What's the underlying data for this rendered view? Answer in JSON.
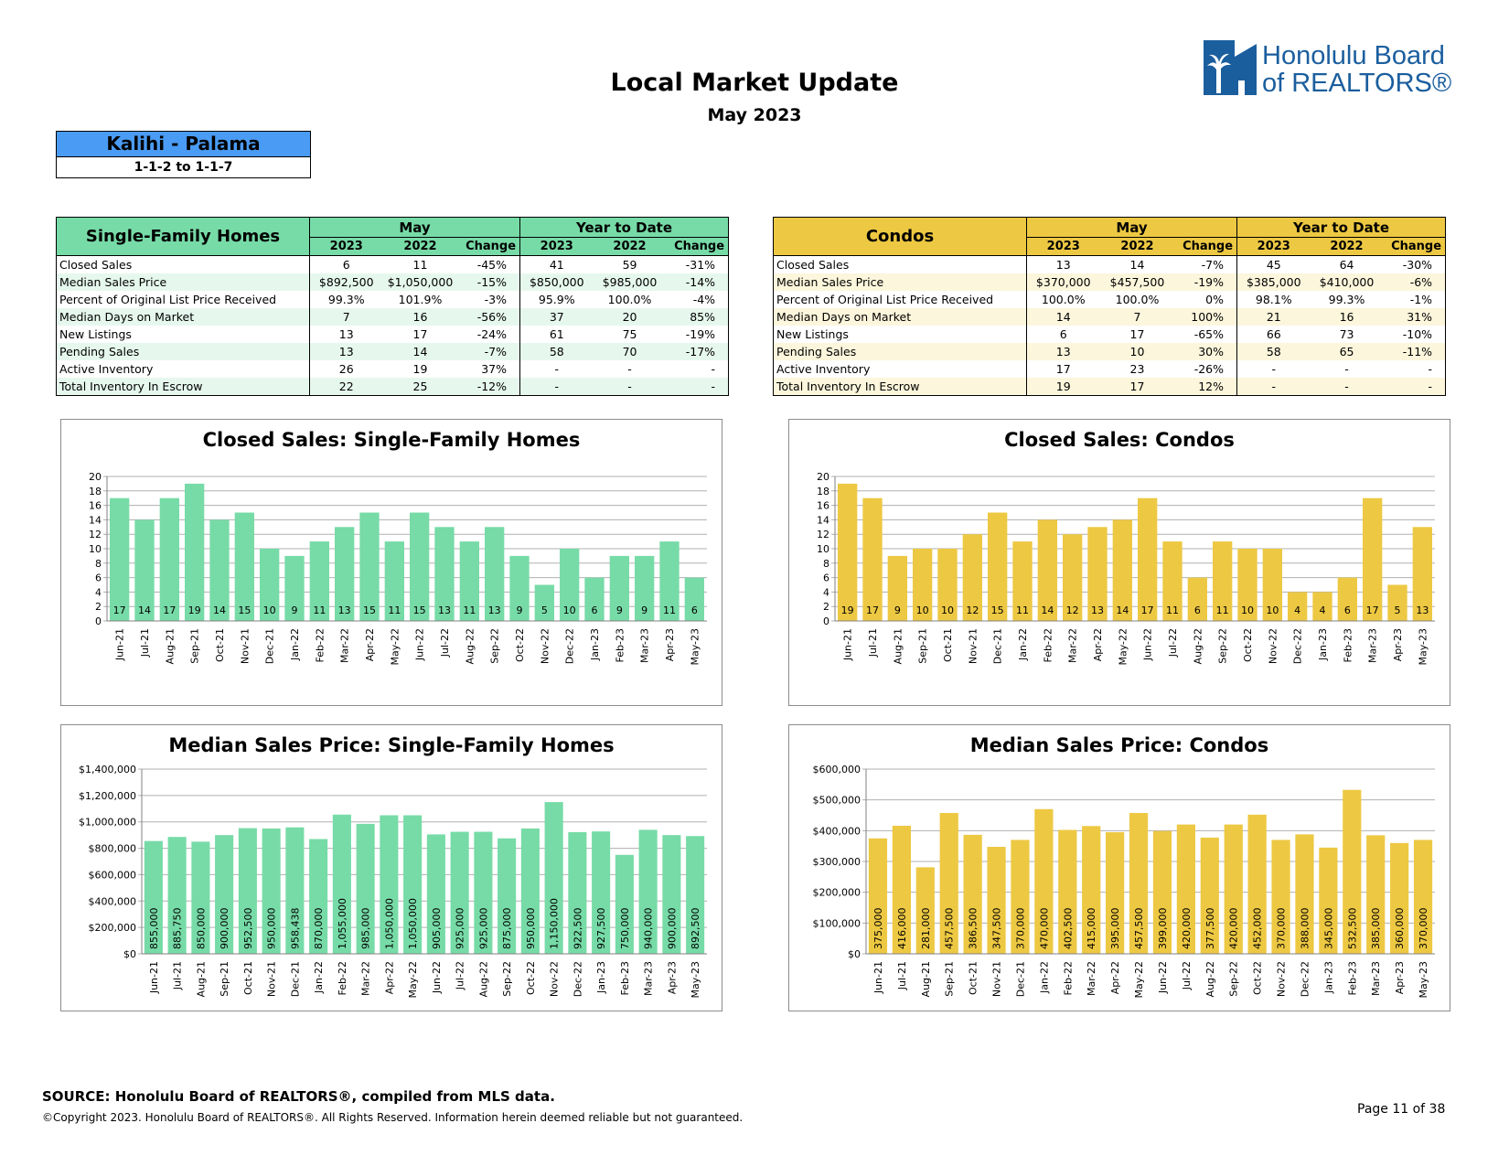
{
  "header": {
    "title": "Local Market Update",
    "subtitle": "May 2023",
    "logo_text_line1": "Honolulu Board",
    "logo_text_line2": "of REALTORS®"
  },
  "area": {
    "name": "Kalihi - Palama",
    "range": "1-1-2 to 1-1-7"
  },
  "tables": {
    "sfh": {
      "title": "Single-Family Homes",
      "group_month": "May",
      "group_ytd": "Year to Date",
      "col_2023": "2023",
      "col_2022": "2022",
      "col_change": "Change",
      "rows": [
        {
          "label": "Closed Sales",
          "m23": "6",
          "m22": "11",
          "mchg": "-45%",
          "y23": "41",
          "y22": "59",
          "ychg": "-31%"
        },
        {
          "label": "Median Sales Price",
          "m23": "$892,500",
          "m22": "$1,050,000",
          "mchg": "-15%",
          "y23": "$850,000",
          "y22": "$985,000",
          "ychg": "-14%"
        },
        {
          "label": "Percent of Original List Price Received",
          "m23": "99.3%",
          "m22": "101.9%",
          "mchg": "-3%",
          "y23": "95.9%",
          "y22": "100.0%",
          "ychg": "-4%"
        },
        {
          "label": "Median Days on Market",
          "m23": "7",
          "m22": "16",
          "mchg": "-56%",
          "y23": "37",
          "y22": "20",
          "ychg": "85%"
        },
        {
          "label": "New Listings",
          "m23": "13",
          "m22": "17",
          "mchg": "-24%",
          "y23": "61",
          "y22": "75",
          "ychg": "-19%"
        },
        {
          "label": "Pending Sales",
          "m23": "13",
          "m22": "14",
          "mchg": "-7%",
          "y23": "58",
          "y22": "70",
          "ychg": "-17%"
        },
        {
          "label": "Active Inventory",
          "m23": "26",
          "m22": "19",
          "mchg": "37%",
          "y23": "-",
          "y22": "-",
          "ychg": "-"
        },
        {
          "label": "Total Inventory In Escrow",
          "m23": "22",
          "m22": "25",
          "mchg": "-12%",
          "y23": "-",
          "y22": "-",
          "ychg": "-"
        }
      ]
    },
    "condo": {
      "title": "Condos",
      "group_month": "May",
      "group_ytd": "Year to Date",
      "col_2023": "2023",
      "col_2022": "2022",
      "col_change": "Change",
      "rows": [
        {
          "label": "Closed Sales",
          "m23": "13",
          "m22": "14",
          "mchg": "-7%",
          "y23": "45",
          "y22": "64",
          "ychg": "-30%"
        },
        {
          "label": "Median Sales Price",
          "m23": "$370,000",
          "m22": "$457,500",
          "mchg": "-19%",
          "y23": "$385,000",
          "y22": "$410,000",
          "ychg": "-6%"
        },
        {
          "label": "Percent of Original List Price Received",
          "m23": "100.0%",
          "m22": "100.0%",
          "mchg": "0%",
          "y23": "98.1%",
          "y22": "99.3%",
          "ychg": "-1%"
        },
        {
          "label": "Median Days on Market",
          "m23": "14",
          "m22": "7",
          "mchg": "100%",
          "y23": "21",
          "y22": "16",
          "ychg": "31%"
        },
        {
          "label": "New Listings",
          "m23": "6",
          "m22": "17",
          "mchg": "-65%",
          "y23": "66",
          "y22": "73",
          "ychg": "-10%"
        },
        {
          "label": "Pending Sales",
          "m23": "13",
          "m22": "10",
          "mchg": "30%",
          "y23": "58",
          "y22": "65",
          "ychg": "-11%"
        },
        {
          "label": "Active Inventory",
          "m23": "17",
          "m22": "23",
          "mchg": "-26%",
          "y23": "-",
          "y22": "-",
          "ychg": "-"
        },
        {
          "label": "Total Inventory In Escrow",
          "m23": "19",
          "m22": "17",
          "mchg": "12%",
          "y23": "-",
          "y22": "-",
          "ychg": "-"
        }
      ]
    }
  },
  "colors": {
    "sfh_fill": "#77dba7",
    "sfh_stripe": "#e6f8ee",
    "condo_fill": "#edc842",
    "condo_stripe": "#fcf6dc",
    "area_header": "#4a9bf3",
    "logo_blue": "#1b5e9e",
    "gridline": "#b0b0b0"
  },
  "chart_data": [
    {
      "id": "cs_sfh",
      "type": "bar",
      "title": "Closed Sales: Single-Family Homes",
      "categories": [
        "Jun-21",
        "Jul-21",
        "Aug-21",
        "Sep-21",
        "Oct-21",
        "Nov-21",
        "Dec-21",
        "Jan-22",
        "Feb-22",
        "Mar-22",
        "Apr-22",
        "May-22",
        "Jun-22",
        "Jul-22",
        "Aug-22",
        "Sep-22",
        "Oct-22",
        "Nov-22",
        "Dec-22",
        "Jan-23",
        "Feb-23",
        "Mar-23",
        "Apr-23",
        "May-23"
      ],
      "values": [
        17,
        14,
        17,
        19,
        14,
        15,
        10,
        9,
        11,
        13,
        15,
        11,
        15,
        13,
        11,
        13,
        9,
        5,
        10,
        6,
        9,
        9,
        11,
        6
      ],
      "ylim": [
        0,
        20
      ],
      "yticks": [
        0,
        2,
        4,
        6,
        8,
        10,
        12,
        14,
        16,
        18,
        20
      ],
      "ytick_labels": [
        "0",
        "2",
        "4",
        "6",
        "8",
        "10",
        "12",
        "14",
        "16",
        "18",
        "20"
      ],
      "data_labels": [
        "17",
        "14",
        "17",
        "19",
        "14",
        "15",
        "10",
        "9",
        "11",
        "13",
        "15",
        "11",
        "15",
        "13",
        "11",
        "13",
        "9",
        "5",
        "10",
        "6",
        "9",
        "9",
        "11",
        "6"
      ],
      "color": "#77dba7",
      "label_style": "bottom-horizontal",
      "grid": true
    },
    {
      "id": "cs_condo",
      "type": "bar",
      "title": "Closed Sales: Condos",
      "categories": [
        "Jun-21",
        "Jul-21",
        "Aug-21",
        "Sep-21",
        "Oct-21",
        "Nov-21",
        "Dec-21",
        "Jan-22",
        "Feb-22",
        "Mar-22",
        "Apr-22",
        "May-22",
        "Jun-22",
        "Jul-22",
        "Aug-22",
        "Sep-22",
        "Oct-22",
        "Nov-22",
        "Dec-22",
        "Jan-23",
        "Feb-23",
        "Mar-23",
        "Apr-23",
        "May-23"
      ],
      "values": [
        19,
        17,
        9,
        10,
        10,
        12,
        15,
        11,
        14,
        12,
        13,
        14,
        17,
        11,
        6,
        11,
        10,
        10,
        4,
        4,
        6,
        17,
        5,
        13
      ],
      "ylim": [
        0,
        20
      ],
      "yticks": [
        0,
        2,
        4,
        6,
        8,
        10,
        12,
        14,
        16,
        18,
        20
      ],
      "ytick_labels": [
        "0",
        "2",
        "4",
        "6",
        "8",
        "10",
        "12",
        "14",
        "16",
        "18",
        "20"
      ],
      "data_labels": [
        "19",
        "17",
        "9",
        "10",
        "10",
        "12",
        "15",
        "11",
        "14",
        "12",
        "13",
        "14",
        "17",
        "11",
        "6",
        "11",
        "10",
        "10",
        "4",
        "4",
        "6",
        "17",
        "5",
        "13"
      ],
      "color": "#edc842",
      "label_style": "bottom-horizontal",
      "grid": true
    },
    {
      "id": "msp_sfh",
      "type": "bar",
      "title": "Median Sales Price: Single-Family Homes",
      "categories": [
        "Jun-21",
        "Jul-21",
        "Aug-21",
        "Sep-21",
        "Oct-21",
        "Nov-21",
        "Dec-21",
        "Jan-22",
        "Feb-22",
        "Mar-22",
        "Apr-22",
        "May-22",
        "Jun-22",
        "Jul-22",
        "Aug-22",
        "Sep-22",
        "Oct-22",
        "Nov-22",
        "Dec-22",
        "Jan-23",
        "Feb-23",
        "Mar-23",
        "Apr-23",
        "May-23"
      ],
      "values": [
        855000,
        885750,
        850000,
        900000,
        952500,
        950000,
        958438,
        870000,
        1055000,
        985000,
        1050000,
        1050000,
        905000,
        925000,
        925000,
        875000,
        950000,
        1150000,
        922500,
        927500,
        750000,
        940000,
        900000,
        892500
      ],
      "ylim": [
        0,
        1400000
      ],
      "yticks": [
        0,
        200000,
        400000,
        600000,
        800000,
        1000000,
        1200000,
        1400000
      ],
      "ytick_labels": [
        "$0",
        "$200,000",
        "$400,000",
        "$600,000",
        "$800,000",
        "$1,000,000",
        "$1,200,000",
        "$1,400,000"
      ],
      "data_labels": [
        "855,000",
        "885,750",
        "850,000",
        "900,000",
        "952,500",
        "950,000",
        "958,438",
        "870,000",
        "1,055,000",
        "985,000",
        "1,050,000",
        "1,050,000",
        "905,000",
        "925,000",
        "925,000",
        "875,000",
        "950,000",
        "1,150,000",
        "922,500",
        "927,500",
        "750,000",
        "940,000",
        "900,000",
        "892,500"
      ],
      "color": "#77dba7",
      "label_style": "bottom-vertical",
      "grid": true
    },
    {
      "id": "msp_condo",
      "type": "bar",
      "title": "Median Sales Price: Condos",
      "categories": [
        "Jun-21",
        "Jul-21",
        "Aug-21",
        "Sep-21",
        "Oct-21",
        "Nov-21",
        "Dec-21",
        "Jan-22",
        "Feb-22",
        "Mar-22",
        "Apr-22",
        "May-22",
        "Jun-22",
        "Jul-22",
        "Aug-22",
        "Sep-22",
        "Oct-22",
        "Nov-22",
        "Dec-22",
        "Jan-23",
        "Feb-23",
        "Mar-23",
        "Apr-23",
        "May-23"
      ],
      "values": [
        375000,
        416000,
        281000,
        457500,
        386500,
        347500,
        370000,
        470000,
        402500,
        415000,
        395000,
        457500,
        399000,
        420000,
        377500,
        420000,
        452000,
        370000,
        388000,
        345000,
        532500,
        385000,
        360000,
        370000
      ],
      "ylim": [
        0,
        600000
      ],
      "yticks": [
        0,
        100000,
        200000,
        300000,
        400000,
        500000,
        600000
      ],
      "ytick_labels": [
        "$0",
        "$100,000",
        "$200,000",
        "$300,000",
        "$400,000",
        "$500,000",
        "$600,000"
      ],
      "data_labels": [
        "375,000",
        "416,000",
        "281,000",
        "457,500",
        "386,500",
        "347,500",
        "370,000",
        "470,000",
        "402,500",
        "415,000",
        "395,000",
        "457,500",
        "399,000",
        "420,000",
        "377,500",
        "420,000",
        "452,000",
        "370,000",
        "388,000",
        "345,000",
        "532,500",
        "385,000",
        "360,000",
        "370,000"
      ],
      "color": "#edc842",
      "label_style": "bottom-vertical",
      "grid": true
    }
  ],
  "footer": {
    "source": "SOURCE: Honolulu Board of REALTORS®, compiled from MLS data.",
    "copyright": "©Copyright 2023. Honolulu Board of REALTORS®. All Rights Reserved. Information herein deemed reliable but not guaranteed.",
    "page": "Page 11 of 38"
  }
}
